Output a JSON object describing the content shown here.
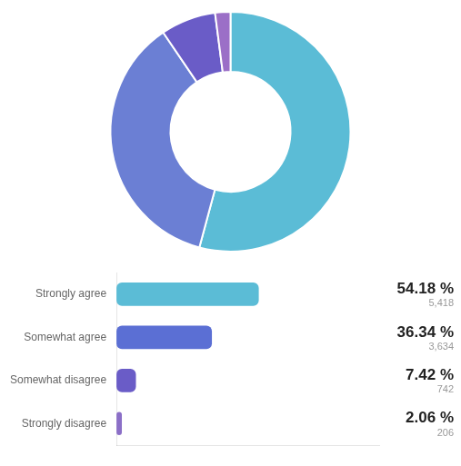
{
  "chart_data": [
    {
      "type": "doughnut",
      "values": [
        54.18,
        36.34,
        7.42,
        2.06
      ],
      "colors": [
        "#5bbcd6",
        "#6b7fd4",
        "#6a5cc7",
        "#9b6fc7"
      ]
    },
    {
      "type": "bar",
      "orientation": "horizontal",
      "categories": [
        "Strongly agree",
        "Somewhat agree",
        "Somewhat disagree",
        "Strongly disagree"
      ],
      "values": [
        54.18,
        36.34,
        7.42,
        2.06
      ],
      "value_labels": [
        "54.18 %",
        "36.34 %",
        "7.42 %",
        "2.06 %"
      ],
      "counts": [
        5418,
        3634,
        742,
        206
      ],
      "count_labels": [
        "5,418",
        "3,634",
        "742",
        "206"
      ],
      "colors": [
        "#5bbcd6",
        "#5b6fd4",
        "#6a5cc7",
        "#8b6fc7"
      ],
      "xlim": [
        0,
        100
      ],
      "grid": false,
      "tick_labels": "y",
      "data_labels": true
    }
  ]
}
